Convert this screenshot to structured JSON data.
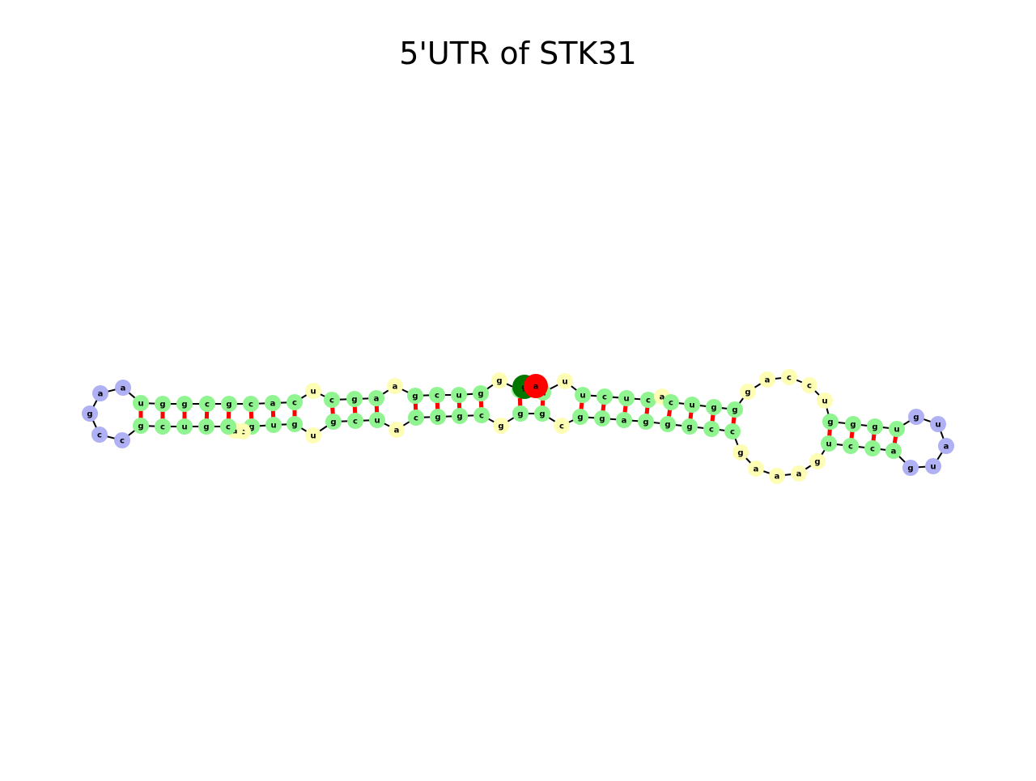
{
  "title": "5'UTR of STK31",
  "colors": {
    "stem": "#90f590",
    "loop": "#fdfdb4",
    "hairpin": "#b0b0f5",
    "pair_bond": "#ff0000",
    "backbone": "#000000",
    "start_marker": "#007700",
    "end_marker": "#ff0000"
  },
  "structure": {
    "start_base": "g",
    "end_base": "a",
    "strand_5prime_to_hairpin_right": [
      "g",
      "g",
      "c",
      "u",
      "u",
      "a",
      "g",
      "c",
      "c",
      "c",
      "u",
      "c",
      "u",
      "g",
      "g",
      "u",
      "c",
      "u",
      "c",
      "c",
      "u",
      "g",
      "g",
      "g",
      "g",
      "a",
      "c",
      "u",
      "c",
      "u",
      "c",
      "g",
      "g",
      "g",
      "u",
      "g",
      "u",
      "a",
      "u",
      "g",
      "a",
      "a"
    ],
    "right_hairpin_loop": [
      "g",
      "u",
      "a",
      "u",
      "u",
      "g"
    ],
    "strand_hairpin_right_return": [
      "a",
      "c",
      "c",
      "u",
      "g",
      "a",
      "a",
      "a",
      "g",
      "g",
      "c",
      "c",
      "g",
      "g",
      "g",
      "a",
      "g",
      "g",
      "a",
      "c",
      "g",
      "g",
      "c",
      "c",
      "c",
      "u",
      "a",
      "u",
      "g",
      "g",
      "c",
      "u",
      "c",
      "g",
      "g",
      "c",
      "a",
      "c",
      "c",
      "c"
    ],
    "left_hairpin_loop": [
      "a",
      "a",
      "g",
      "c",
      "c"
    ],
    "strand_left_hairpin_return": [
      "g",
      "c",
      "u",
      "g",
      "c",
      "a",
      "c",
      "g",
      "u",
      "g"
    ]
  },
  "nucleotides": [
    {
      "b": "g",
      "t": "start"
    },
    {
      "b": "a",
      "t": "end"
    },
    {
      "b": "u",
      "t": "loop"
    },
    {
      "b": "u",
      "t": "stem"
    },
    {
      "b": "c",
      "t": "stem"
    },
    {
      "b": "u",
      "t": "stem"
    },
    {
      "b": "c",
      "t": "stem"
    },
    {
      "b": "a",
      "t": "loop"
    },
    {
      "b": "c",
      "t": "stem"
    },
    {
      "b": "u",
      "t": "stem"
    },
    {
      "b": "g",
      "t": "stem"
    },
    {
      "b": "g",
      "t": "loop"
    },
    {
      "b": "a",
      "t": "loop"
    },
    {
      "b": "c",
      "t": "loop"
    },
    {
      "b": "u",
      "t": "loop"
    },
    {
      "b": "u",
      "t": "loop"
    },
    {
      "b": "g",
      "t": "stem"
    },
    {
      "b": "g",
      "t": "stem"
    },
    {
      "b": "g",
      "t": "stem"
    },
    {
      "b": "u",
      "t": "stem"
    },
    {
      "b": "g",
      "t": "hairpin"
    },
    {
      "b": "u",
      "t": "hairpin"
    },
    {
      "b": "a",
      "t": "hairpin"
    },
    {
      "b": "u",
      "t": "hairpin"
    },
    {
      "b": "g",
      "t": "hairpin"
    },
    {
      "b": "a",
      "t": "stem"
    },
    {
      "b": "c",
      "t": "stem"
    },
    {
      "b": "c",
      "t": "stem"
    },
    {
      "b": "u",
      "t": "stem"
    },
    {
      "b": "g",
      "t": "loop"
    },
    {
      "b": "a",
      "t": "loop"
    },
    {
      "b": "a",
      "t": "loop"
    },
    {
      "b": "a",
      "t": "loop"
    },
    {
      "b": "g",
      "t": "loop"
    },
    {
      "b": "c",
      "t": "stem"
    },
    {
      "b": "c",
      "t": "stem"
    },
    {
      "b": "g",
      "t": "stem"
    },
    {
      "b": "g",
      "t": "stem"
    },
    {
      "b": "g",
      "t": "stem"
    },
    {
      "b": "a",
      "t": "stem"
    },
    {
      "b": "g",
      "t": "stem"
    },
    {
      "b": "g",
      "t": "stem"
    },
    {
      "b": "c",
      "t": "loop"
    },
    {
      "b": "g",
      "t": "stem"
    },
    {
      "b": "g",
      "t": "stem"
    },
    {
      "b": "g",
      "t": "loop"
    },
    {
      "b": "c",
      "t": "stem"
    },
    {
      "b": "g",
      "t": "stem"
    },
    {
      "b": "g",
      "t": "stem"
    },
    {
      "b": "c",
      "t": "stem"
    },
    {
      "b": "a",
      "t": "loop"
    },
    {
      "b": "u",
      "t": "stem"
    },
    {
      "b": "c",
      "t": "stem"
    },
    {
      "b": "g",
      "t": "stem"
    },
    {
      "b": "u",
      "t": "loop"
    },
    {
      "b": "g",
      "t": "stem"
    },
    {
      "b": "u",
      "t": "stem"
    },
    {
      "b": "g",
      "t": "stem"
    },
    {
      "b": "c",
      "t": "loop"
    },
    {
      "b": "a",
      "t": "loop"
    },
    {
      "b": "c",
      "t": "stem"
    },
    {
      "b": "g",
      "t": "stem"
    },
    {
      "b": "u",
      "t": "stem"
    },
    {
      "b": "c",
      "t": "stem"
    },
    {
      "b": "g",
      "t": "stem"
    },
    {
      "b": "c",
      "t": "hairpin"
    },
    {
      "b": "c",
      "t": "hairpin"
    },
    {
      "b": "g",
      "t": "hairpin"
    },
    {
      "b": "a",
      "t": "hairpin"
    },
    {
      "b": "a",
      "t": "hairpin"
    },
    {
      "b": "u",
      "t": "stem"
    },
    {
      "b": "g",
      "t": "stem"
    },
    {
      "b": "g",
      "t": "stem"
    },
    {
      "b": "c",
      "t": "stem"
    },
    {
      "b": "g",
      "t": "stem"
    },
    {
      "b": "c",
      "t": "stem"
    },
    {
      "b": "a",
      "t": "stem"
    },
    {
      "b": "c",
      "t": "stem"
    },
    {
      "b": "u",
      "t": "loop"
    },
    {
      "b": "c",
      "t": "stem"
    },
    {
      "b": "g",
      "t": "stem"
    },
    {
      "b": "a",
      "t": "stem"
    },
    {
      "b": "a",
      "t": "loop"
    },
    {
      "b": "g",
      "t": "stem"
    },
    {
      "b": "c",
      "t": "stem"
    },
    {
      "b": "u",
      "t": "stem"
    },
    {
      "b": "g",
      "t": "stem"
    },
    {
      "b": "g",
      "t": "loop"
    },
    {
      "b": "c",
      "t": "loop"
    },
    {
      "b": "a",
      "t": "loop"
    },
    {
      "b": "u",
      "t": "loop"
    },
    {
      "b": "u",
      "t": "stem"
    },
    {
      "b": "c",
      "t": "stem"
    },
    {
      "b": "u",
      "t": "stem"
    },
    {
      "b": "c",
      "t": "stem"
    },
    {
      "b": "a",
      "t": "loop"
    },
    {
      "b": "c",
      "t": "stem"
    },
    {
      "b": "u",
      "t": "stem"
    },
    {
      "b": "g",
      "t": "stem"
    },
    {
      "b": "g",
      "t": "stem"
    },
    {
      "b": "u",
      "t": "loop"
    },
    {
      "b": "c",
      "t": "loop"
    },
    {
      "b": "a",
      "t": "loop"
    },
    {
      "b": "c",
      "t": "loop"
    },
    {
      "b": "u",
      "t": "loop"
    },
    {
      "b": "c",
      "t": "loop"
    },
    {
      "b": "g",
      "t": "loop"
    },
    {
      "b": "g",
      "t": "stem"
    },
    {
      "b": "g",
      "t": "stem"
    },
    {
      "b": "g",
      "t": "stem"
    },
    {
      "b": "u",
      "t": "stem"
    },
    {
      "b": "g",
      "t": "hairpin"
    },
    {
      "b": "u",
      "t": "hairpin"
    },
    {
      "b": "a",
      "t": "hairpin"
    },
    {
      "b": "u",
      "t": "hairpin"
    },
    {
      "b": "g",
      "t": "hairpin"
    },
    {
      "b": "a",
      "t": "stem"
    },
    {
      "b": "c",
      "t": "stem"
    },
    {
      "b": "c",
      "t": "stem"
    },
    {
      "b": "u",
      "t": "stem"
    },
    {
      "b": "g",
      "t": "loop"
    },
    {
      "b": "a",
      "t": "loop"
    },
    {
      "b": "a",
      "t": "loop"
    },
    {
      "b": "a",
      "t": "loop"
    },
    {
      "b": "g",
      "t": "loop"
    },
    {
      "b": "c",
      "t": "stem"
    }
  ]
}
